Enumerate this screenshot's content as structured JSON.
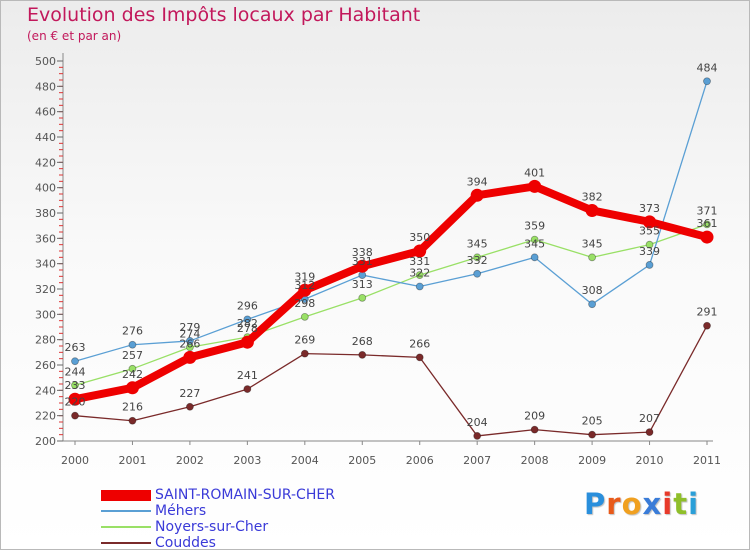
{
  "chart_data": {
    "type": "line",
    "title": "Evolution des Impôts locaux par Habitant",
    "subtitle": "(en € et par an)",
    "xlabel": "",
    "ylabel": "",
    "ylim": [
      200,
      500
    ],
    "y_ticks": [
      200,
      220,
      240,
      260,
      280,
      300,
      320,
      340,
      360,
      380,
      400,
      420,
      440,
      460,
      480,
      500
    ],
    "categories": [
      "2000",
      "2001",
      "2002",
      "2003",
      "2004",
      "2005",
      "2006",
      "2007",
      "2008",
      "2009",
      "2010",
      "2011"
    ],
    "grid": false,
    "legend_position": "bottom-left",
    "series": [
      {
        "name": "SAINT-ROMAIN-SUR-CHER",
        "color": "#ee0000",
        "values": [
          233,
          242,
          266,
          278,
          319,
          338,
          350,
          394,
          401,
          382,
          373,
          361
        ]
      },
      {
        "name": "Méhers",
        "color": "#5a9fd4",
        "values": [
          263,
          276,
          279,
          296,
          312,
          331,
          322,
          332,
          345,
          308,
          339,
          484
        ]
      },
      {
        "name": "Noyers-sur-Cher",
        "color": "#99e066",
        "values": [
          244,
          257,
          274,
          282,
          298,
          313,
          331,
          345,
          359,
          345,
          355,
          371
        ]
      },
      {
        "name": "Couddes",
        "color": "#7a2a2a",
        "values": [
          220,
          216,
          227,
          241,
          269,
          268,
          266,
          204,
          209,
          205,
          207,
          291
        ]
      }
    ]
  },
  "branding": {
    "logo_text": "Proxiti",
    "logo_letter_colors": [
      "#2a8fdc",
      "#e85a1a",
      "#f0a020",
      "#3a7cd8",
      "#e83a2a",
      "#8fbf2a",
      "#2a9fd8"
    ]
  }
}
